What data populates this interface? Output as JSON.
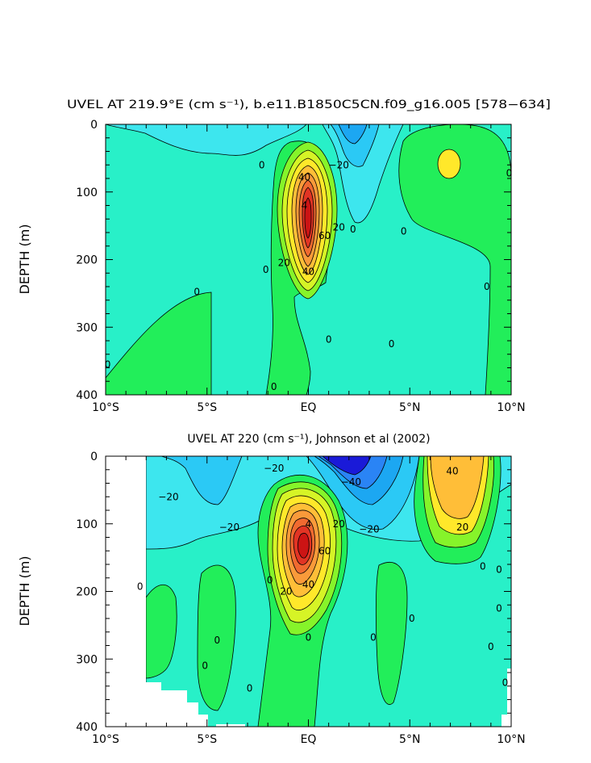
{
  "chart_data": [
    {
      "type": "contour",
      "title": "UVEL AT 219.9°E (cm s⁻¹), b.e11.B1850C5CN.f09_g16.005 [578−634]",
      "ylabel": "DEPTH (m)",
      "xlabel": "",
      "x_ticks": [
        {
          "value": -10,
          "label": "10°S"
        },
        {
          "value": -5,
          "label": "5°S"
        },
        {
          "value": 0,
          "label": "EQ"
        },
        {
          "value": 5,
          "label": "5°N"
        },
        {
          "value": 10,
          "label": "10°N"
        }
      ],
      "y_ticks": [
        0,
        100,
        200,
        300,
        400
      ],
      "xlim": [
        -10,
        10
      ],
      "ylim": [
        0,
        400
      ],
      "y_inverted": true,
      "contour_interval": 10,
      "contour_labels": [
        {
          "lat": -9.9,
          "depth": 355,
          "text": "0"
        },
        {
          "lat": -5.5,
          "depth": 248,
          "text": "0"
        },
        {
          "lat": -2.3,
          "depth": 60,
          "text": "0"
        },
        {
          "lat": -2.1,
          "depth": 215,
          "text": "0"
        },
        {
          "lat": -0.2,
          "depth": 78,
          "text": "40"
        },
        {
          "lat": -0.2,
          "depth": 120,
          "text": "4"
        },
        {
          "lat": 0.8,
          "depth": 165,
          "text": "60"
        },
        {
          "lat": 1.5,
          "depth": 152,
          "text": "20"
        },
        {
          "lat": -1.2,
          "depth": 205,
          "text": "20"
        },
        {
          "lat": 0.0,
          "depth": 218,
          "text": "40"
        },
        {
          "lat": 1.5,
          "depth": 60,
          "text": "−20"
        },
        {
          "lat": 2.2,
          "depth": 155,
          "text": "0"
        },
        {
          "lat": 4.7,
          "depth": 158,
          "text": "0"
        },
        {
          "lat": 4.1,
          "depth": 325,
          "text": "0"
        },
        {
          "lat": 1.0,
          "depth": 318,
          "text": "0"
        },
        {
          "lat": -1.7,
          "depth": 388,
          "text": "0"
        },
        {
          "lat": 8.8,
          "depth": 240,
          "text": "0"
        },
        {
          "lat": 9.9,
          "depth": 72,
          "text": "0"
        }
      ],
      "features": [
        {
          "kind": "eastward_core",
          "lat": 0.0,
          "depth": 135,
          "max": 75
        },
        {
          "kind": "eastward_max",
          "lat": 7.0,
          "depth": 60,
          "max": 25
        },
        {
          "kind": "westward_min",
          "lat": 2.0,
          "depth": 10,
          "min": -30
        }
      ]
    },
    {
      "type": "contour",
      "title": "UVEL AT 220 (cm s⁻¹), Johnson et al (2002)",
      "ylabel": "DEPTH (m)",
      "xlabel": "",
      "x_ticks": [
        {
          "value": -10,
          "label": "10°S"
        },
        {
          "value": -5,
          "label": "5°S"
        },
        {
          "value": 0,
          "label": "EQ"
        },
        {
          "value": 5,
          "label": "5°N"
        },
        {
          "value": 10,
          "label": "10°N"
        }
      ],
      "y_ticks": [
        0,
        100,
        200,
        300,
        400
      ],
      "xlim": [
        -10,
        10
      ],
      "ylim": [
        0,
        400
      ],
      "y_inverted": true,
      "contour_interval": 10,
      "contour_labels": [
        {
          "lat": -6.9,
          "depth": 60,
          "text": "−20"
        },
        {
          "lat": -3.9,
          "depth": 105,
          "text": "−20"
        },
        {
          "lat": -1.7,
          "depth": 18,
          "text": "−20"
        },
        {
          "lat": 0.0,
          "depth": 100,
          "text": "4"
        },
        {
          "lat": 0.8,
          "depth": 140,
          "text": "60"
        },
        {
          "lat": 1.5,
          "depth": 100,
          "text": "20"
        },
        {
          "lat": -1.1,
          "depth": 200,
          "text": "20"
        },
        {
          "lat": 0.0,
          "depth": 190,
          "text": "40"
        },
        {
          "lat": 2.1,
          "depth": 38,
          "text": "−40"
        },
        {
          "lat": 3.0,
          "depth": 108,
          "text": "−20"
        },
        {
          "lat": 7.1,
          "depth": 22,
          "text": "40"
        },
        {
          "lat": 7.6,
          "depth": 105,
          "text": "20"
        },
        {
          "lat": -8.3,
          "depth": 193,
          "text": "0"
        },
        {
          "lat": -1.9,
          "depth": 183,
          "text": "0"
        },
        {
          "lat": -4.5,
          "depth": 272,
          "text": "0"
        },
        {
          "lat": -5.1,
          "depth": 310,
          "text": "0"
        },
        {
          "lat": -2.9,
          "depth": 343,
          "text": "0"
        },
        {
          "lat": 0.0,
          "depth": 268,
          "text": "0"
        },
        {
          "lat": 3.2,
          "depth": 268,
          "text": "0"
        },
        {
          "lat": 5.1,
          "depth": 240,
          "text": "0"
        },
        {
          "lat": 8.6,
          "depth": 163,
          "text": "0"
        },
        {
          "lat": 9.4,
          "depth": 168,
          "text": "0"
        },
        {
          "lat": 9.0,
          "depth": 282,
          "text": "0"
        },
        {
          "lat": 9.4,
          "depth": 225,
          "text": "0"
        },
        {
          "lat": 9.7,
          "depth": 335,
          "text": "0"
        }
      ],
      "features": [
        {
          "kind": "eastward_core",
          "lat": -0.2,
          "depth": 110,
          "max": 80
        },
        {
          "kind": "eastward_max",
          "lat": 7.0,
          "depth": 50,
          "max": 40
        },
        {
          "kind": "westward_min",
          "lat": 2.0,
          "depth": 5,
          "min": -60
        }
      ]
    }
  ],
  "palette": {
    "-60": "#1a1ad8",
    "-50": "#2a50e8",
    "-40": "#2a84f5",
    "-30": "#1ca7f2",
    "-20": "#2bc9f5",
    "-10": "#3de6ee",
    "0": "#28f0c8",
    "10": "#22ee5a",
    "20": "#86f42a",
    "30": "#d6f426",
    "40": "#ffe82a",
    "50": "#ffbe38",
    "60": "#f99a3a",
    "70": "#f06a30",
    "80": "#e23424",
    "90": "#cc1414"
  }
}
